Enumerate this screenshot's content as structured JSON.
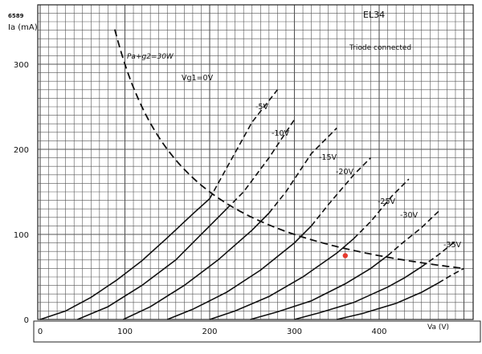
{
  "chart_data": {
    "type": "line",
    "title": "EL34",
    "subtitle": "Triode connected",
    "ref_code": "6589",
    "xlabel": "Va (V)",
    "ylabel": "Ia (mA)",
    "xlim": [
      0,
      500
    ],
    "ylim": [
      0,
      340
    ],
    "x_ticks": [
      0,
      100,
      200,
      300,
      400
    ],
    "y_ticks": [
      0,
      100,
      200,
      300
    ],
    "x_tick_labels": [
      "0",
      "100",
      "200",
      "300",
      "400"
    ],
    "y_tick_labels": [
      "0",
      "100",
      "200",
      "300"
    ],
    "grid": true,
    "grid_x_step": 10,
    "grid_y_step": 10,
    "series": [
      {
        "name": "Vg1=0V",
        "points": [
          [
            0,
            0
          ],
          [
            30,
            10
          ],
          [
            60,
            26
          ],
          [
            90,
            46
          ],
          [
            120,
            69
          ],
          [
            150,
            96
          ],
          [
            180,
            124
          ],
          [
            200,
            142
          ],
          [
            220,
            178
          ],
          [
            250,
            232
          ],
          [
            280,
            270
          ]
        ],
        "dashed_from": 200
      },
      {
        "name": "-5V",
        "points": [
          [
            44,
            0
          ],
          [
            80,
            15
          ],
          [
            120,
            40
          ],
          [
            160,
            70
          ],
          [
            200,
            110
          ],
          [
            220,
            130
          ],
          [
            240,
            150
          ],
          [
            270,
            190
          ],
          [
            300,
            235
          ]
        ],
        "dashed_from": 220
      },
      {
        "name": "-10V",
        "points": [
          [
            98,
            0
          ],
          [
            130,
            15
          ],
          [
            170,
            40
          ],
          [
            210,
            70
          ],
          [
            250,
            105
          ],
          [
            270,
            125
          ],
          [
            290,
            150
          ],
          [
            320,
            195
          ],
          [
            350,
            225
          ]
        ],
        "dashed_from": 270
      },
      {
        "name": "-15V",
        "points": [
          [
            150,
            0
          ],
          [
            180,
            12
          ],
          [
            220,
            32
          ],
          [
            260,
            58
          ],
          [
            300,
            90
          ],
          [
            320,
            110
          ],
          [
            340,
            135
          ],
          [
            370,
            170
          ],
          [
            390,
            190
          ]
        ],
        "dashed_from": 320
      },
      {
        "name": "-20V",
        "points": [
          [
            200,
            0
          ],
          [
            230,
            10
          ],
          [
            270,
            27
          ],
          [
            310,
            50
          ],
          [
            350,
            78
          ],
          [
            370,
            95
          ],
          [
            390,
            115
          ],
          [
            415,
            145
          ],
          [
            435,
            165
          ]
        ],
        "dashed_from": 370
      },
      {
        "name": "-25V",
        "points": [
          [
            248,
            0
          ],
          [
            280,
            9
          ],
          [
            320,
            22
          ],
          [
            360,
            42
          ],
          [
            390,
            60
          ],
          [
            410,
            75
          ],
          [
            430,
            92
          ],
          [
            450,
            108
          ],
          [
            470,
            127
          ]
        ],
        "dashed_from": 410
      },
      {
        "name": "-30V",
        "points": [
          [
            300,
            0
          ],
          [
            330,
            8
          ],
          [
            370,
            20
          ],
          [
            410,
            38
          ],
          [
            430,
            49
          ],
          [
            450,
            62
          ],
          [
            470,
            76
          ],
          [
            490,
            92
          ]
        ],
        "dashed_from": 450
      },
      {
        "name": "-35V",
        "points": [
          [
            350,
            0
          ],
          [
            380,
            7
          ],
          [
            420,
            19
          ],
          [
            450,
            32
          ],
          [
            470,
            43
          ],
          [
            485,
            52
          ],
          [
            500,
            60
          ]
        ],
        "dashed_from": 470
      }
    ],
    "dissipation_curve": {
      "name": "Pa+g2=30W",
      "watts": 30,
      "x_range": [
        88,
        500
      ]
    },
    "marker_point": {
      "x": 360,
      "y": 75,
      "color": "#e63a2e"
    },
    "colors": {
      "curves": "#111111",
      "grid": "#555555",
      "marker": "#e63a2e"
    }
  }
}
